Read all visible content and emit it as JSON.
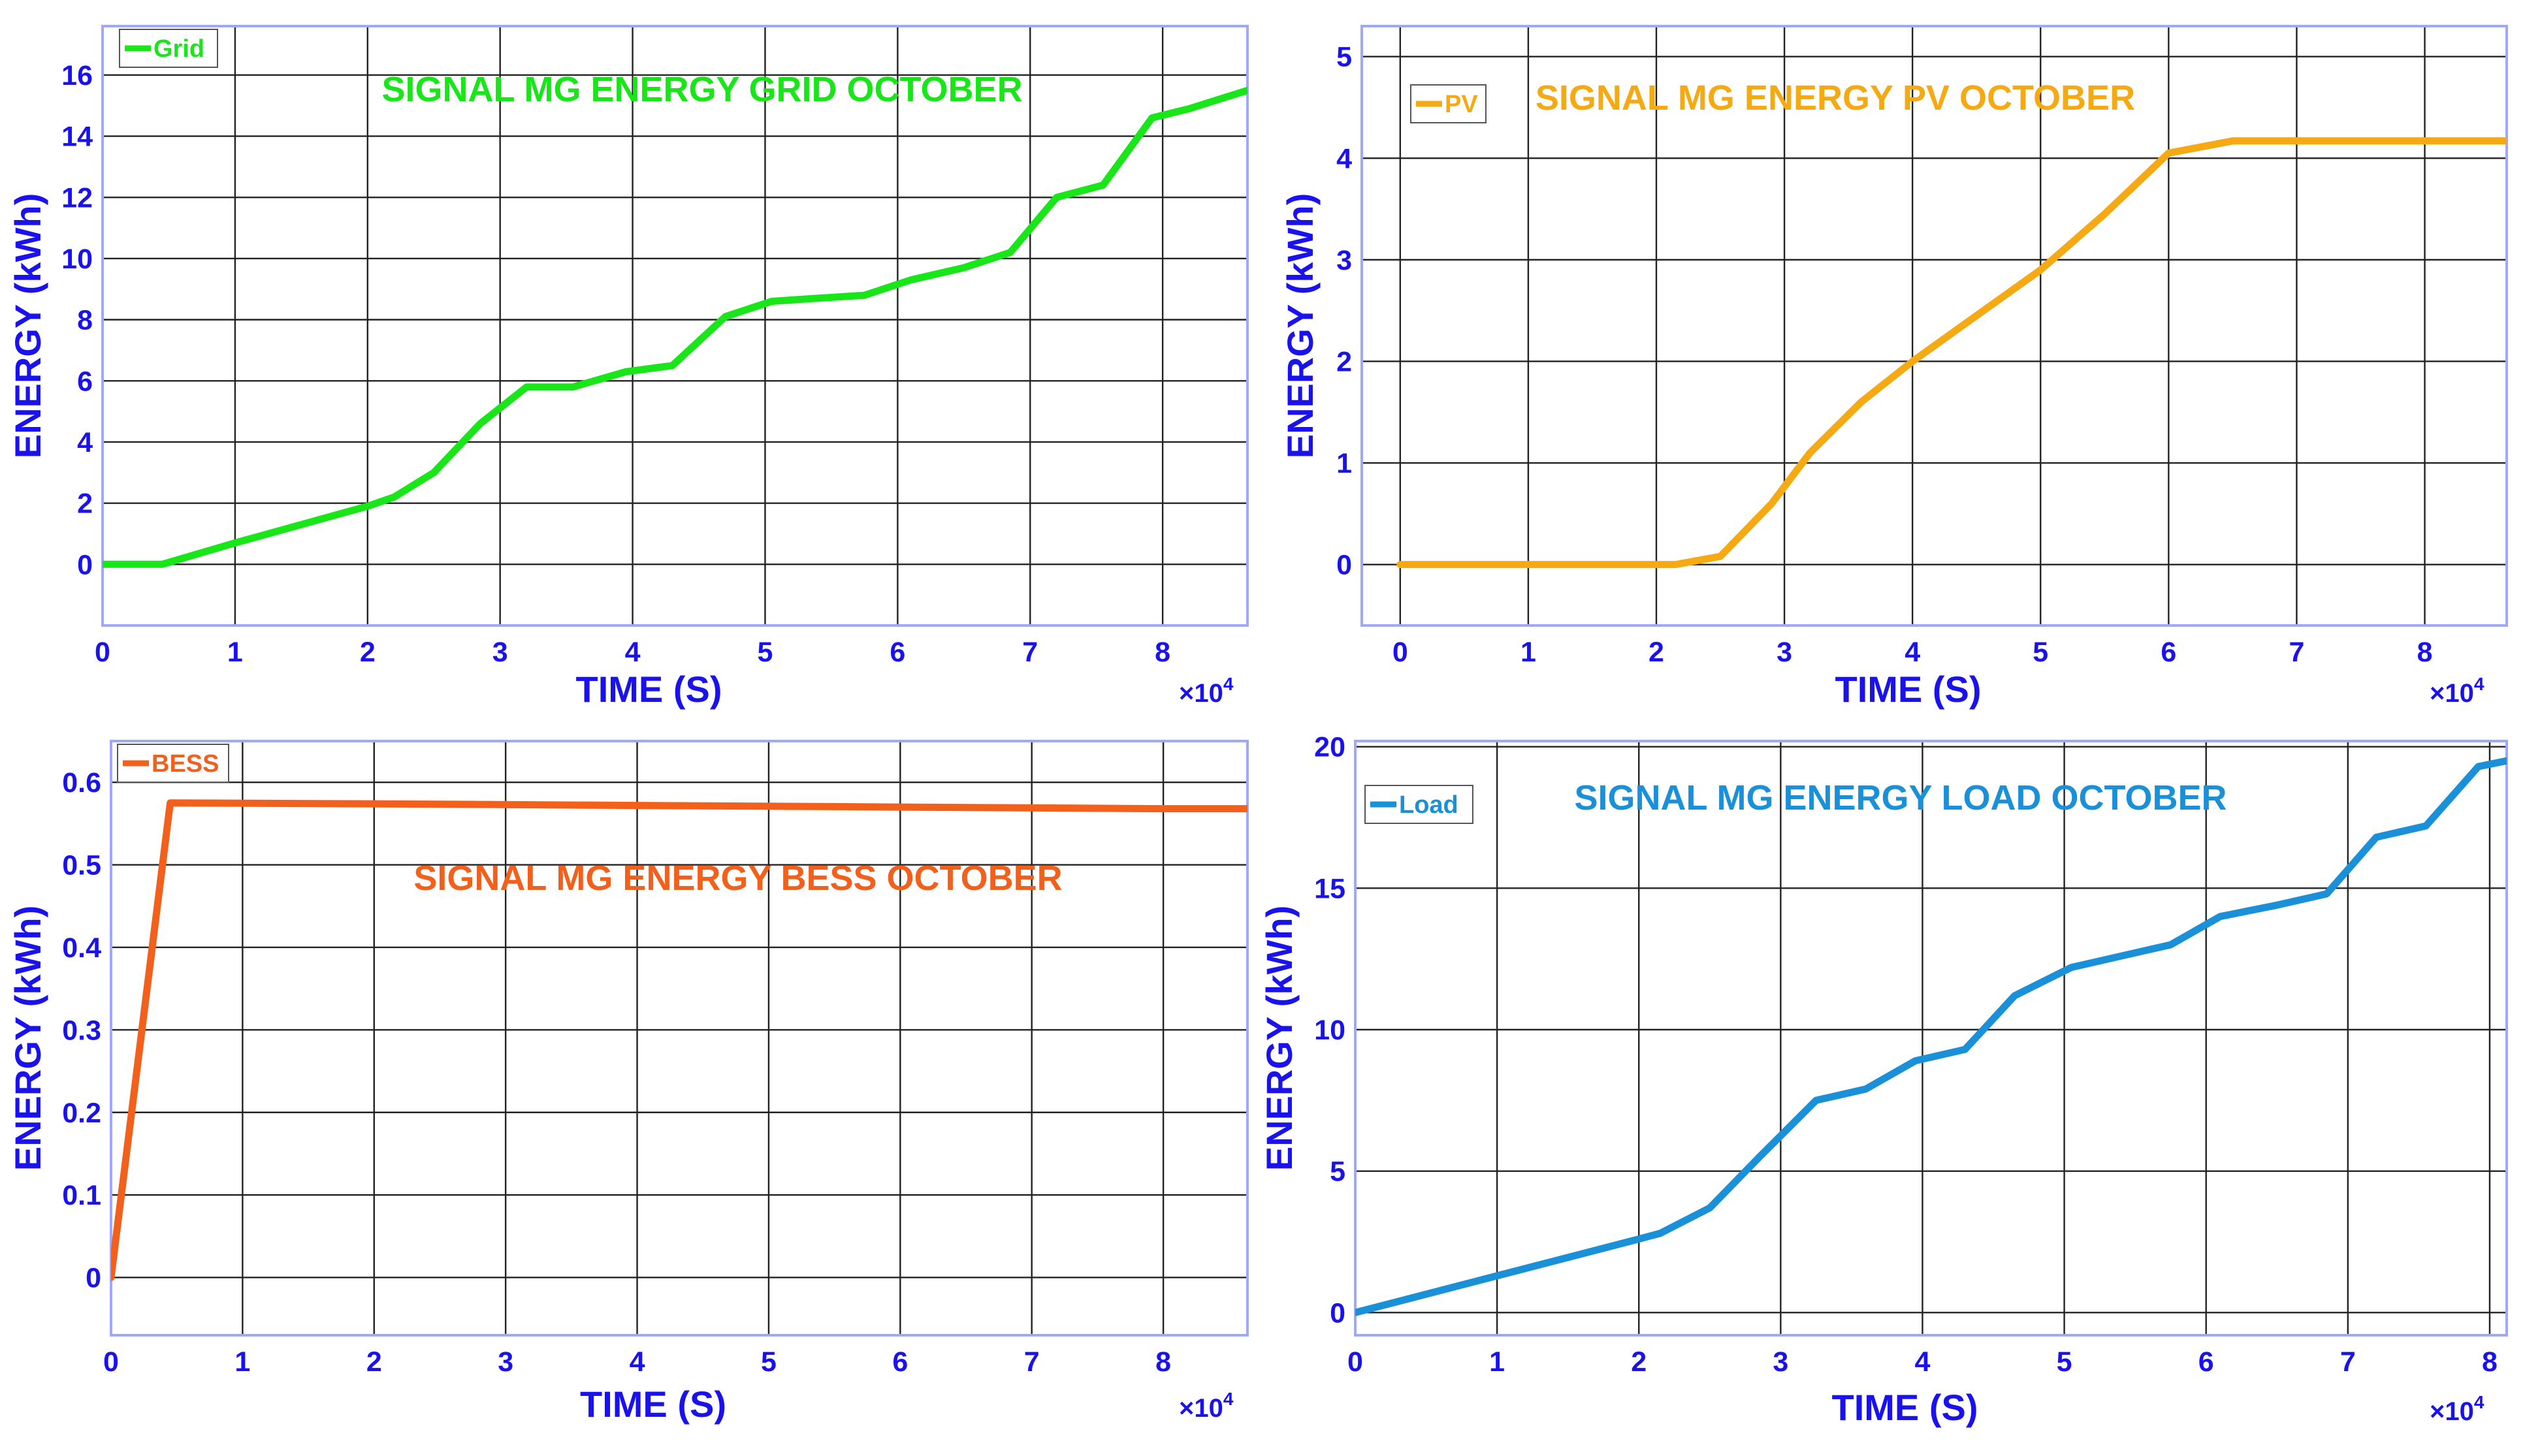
{
  "chart_data": [
    {
      "type": "line",
      "title": "SIGNAL MG ENERGY GRID OCTOBER",
      "xlabel": "TIME (S)",
      "ylabel": "ENERGY (kWh)",
      "x_scale_label": "×10",
      "x_scale_exp": "4",
      "xlim": [
        0,
        8.64
      ],
      "ylim": [
        -2,
        17.6
      ],
      "xticks": [
        0,
        1,
        2,
        3,
        4,
        5,
        6,
        7,
        8
      ],
      "yticks": [
        0,
        2,
        4,
        6,
        8,
        10,
        12,
        14,
        16
      ],
      "grid": true,
      "legend_position": "top-left",
      "series": [
        {
          "name": "Grid",
          "color": "#19e619",
          "x": [
            0,
            0.45,
            1.0,
            1.5,
            2.0,
            2.2,
            2.5,
            2.85,
            3.2,
            3.55,
            3.95,
            4.3,
            4.7,
            5.05,
            5.4,
            5.75,
            6.1,
            6.5,
            6.85,
            7.2,
            7.55,
            7.92,
            8.2,
            8.64
          ],
          "y": [
            0,
            0,
            0.7,
            1.3,
            1.9,
            2.2,
            3.0,
            4.6,
            5.8,
            5.8,
            6.3,
            6.5,
            8.1,
            8.6,
            8.7,
            8.8,
            9.3,
            9.7,
            10.2,
            12.0,
            12.4,
            14.6,
            14.9,
            15.5
          ]
        }
      ]
    },
    {
      "type": "line",
      "title": "SIGNAL MG ENERGY PV OCTOBER",
      "xlabel": "TIME (S)",
      "ylabel": "ENERGY (kWh)",
      "x_scale_label": "×10",
      "x_scale_exp": "4",
      "xlim": [
        -0.3,
        8.64
      ],
      "ylim": [
        -0.6,
        5.3
      ],
      "xticks": [
        0,
        1,
        2,
        3,
        4,
        5,
        6,
        7,
        8
      ],
      "yticks": [
        0,
        1,
        2,
        3,
        4,
        5
      ],
      "grid": true,
      "legend_position": "top-left",
      "series": [
        {
          "name": "PV",
          "color": "#f5a912",
          "x": [
            0,
            1.0,
            2.0,
            2.15,
            2.5,
            2.9,
            3.2,
            3.6,
            4.0,
            4.5,
            5.0,
            5.5,
            6.0,
            6.5,
            7.0,
            8.0,
            8.64
          ],
          "y": [
            0,
            0,
            0,
            0,
            0.08,
            0.6,
            1.1,
            1.6,
            2.0,
            2.45,
            2.9,
            3.45,
            4.05,
            4.17,
            4.17,
            4.17,
            4.17
          ]
        }
      ]
    },
    {
      "type": "line",
      "title": "SIGNAL MG ENERGY BESS OCTOBER",
      "xlabel": "TIME (S)",
      "ylabel": "ENERGY (kWh)",
      "x_scale_label": "×10",
      "x_scale_exp": "4",
      "xlim": [
        0,
        8.64
      ],
      "ylim": [
        -0.07,
        0.65
      ],
      "xticks": [
        0,
        1,
        2,
        3,
        4,
        5,
        6,
        7,
        8
      ],
      "yticks": [
        0,
        0.1,
        0.2,
        0.3,
        0.4,
        0.5,
        0.6
      ],
      "grid": true,
      "legend_position": "top-left",
      "series": [
        {
          "name": "BESS",
          "color": "#f2601c",
          "x": [
            0,
            0.45,
            2.0,
            4.0,
            6.0,
            8.0,
            8.64
          ],
          "y": [
            0,
            0.575,
            0.574,
            0.572,
            0.57,
            0.568,
            0.568
          ]
        }
      ]
    },
    {
      "type": "line",
      "title": "SIGNAL MG ENERGY LOAD OCTOBER",
      "xlabel": "TIME (S)",
      "ylabel": "ENERGY (kWh)",
      "x_scale_label": "×10",
      "x_scale_exp": "4",
      "xlim": [
        0,
        8.12
      ],
      "ylim": [
        -0.8,
        20.2
      ],
      "xticks": [
        0,
        1,
        2,
        3,
        4,
        5,
        6,
        7,
        8
      ],
      "yticks": [
        0,
        5,
        10,
        15,
        20
      ],
      "grid": true,
      "legend_position": "top-left",
      "series": [
        {
          "name": "Load",
          "color": "#1a90d9",
          "x": [
            0,
            1.0,
            2.0,
            2.15,
            2.5,
            2.85,
            3.25,
            3.6,
            3.95,
            4.3,
            4.65,
            5.05,
            5.4,
            5.75,
            6.1,
            6.5,
            6.85,
            7.2,
            7.55,
            7.92,
            8.12
          ],
          "y": [
            0,
            1.3,
            2.6,
            2.8,
            3.7,
            5.5,
            7.5,
            7.9,
            8.9,
            9.3,
            11.2,
            12.2,
            12.6,
            13.0,
            14.0,
            14.4,
            14.8,
            16.8,
            17.2,
            19.3,
            19.5
          ]
        }
      ]
    }
  ]
}
